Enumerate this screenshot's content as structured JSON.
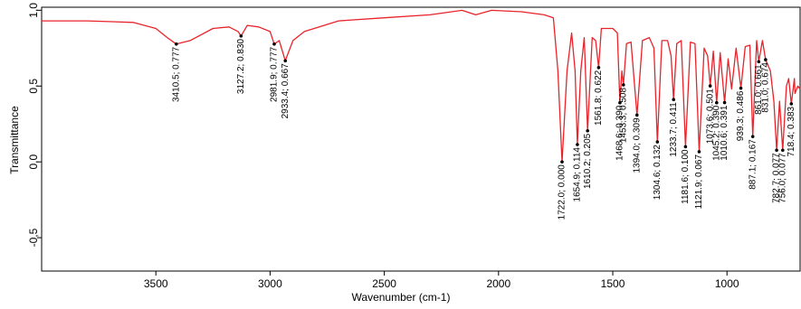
{
  "chart_data": {
    "type": "line",
    "xlabel": "Wavenumber (cm-1)",
    "ylabel": "Transmittance",
    "color": "#e8232a",
    "xlim": [
      4000,
      680
    ],
    "ylim": [
      -0.72,
      1.02
    ],
    "xticks": [
      3500,
      3000,
      2500,
      2000,
      1500,
      1000
    ],
    "yticks": [
      {
        "value": 1.0,
        "label": "1,0"
      },
      {
        "value": 0.5,
        "label": "0,5"
      },
      {
        "value": 0.0,
        "label": "0,0"
      },
      {
        "value": -0.5,
        "label": "-0,5"
      }
    ],
    "x": [
      4000,
      3800,
      3600,
      3500,
      3450,
      3410.5,
      3350,
      3250,
      3180,
      3140,
      3127.2,
      3100,
      3050,
      3000,
      2981.9,
      2960,
      2933.4,
      2900,
      2850,
      2700,
      2500,
      2300,
      2160,
      2100,
      2030,
      1900,
      1800,
      1760,
      1740,
      1722,
      1700,
      1680,
      1665,
      1654.9,
      1640,
      1625,
      1610.2,
      1590,
      1575,
      1561.8,
      1550,
      1500,
      1480,
      1468.6,
      1460,
      1453.3,
      1440,
      1420,
      1394,
      1370,
      1340,
      1320,
      1304.6,
      1285,
      1260,
      1245,
      1233.7,
      1220,
      1200,
      1181.6,
      1160,
      1140,
      1121.9,
      1100,
      1085,
      1073.6,
      1060,
      1045.2,
      1030,
      1010.6,
      995,
      980,
      960,
      939.3,
      920,
      900,
      887.1,
      870,
      861,
      845,
      831,
      810,
      795,
      782.7,
      770,
      756,
      740,
      730,
      718.4,
      705,
      702,
      690,
      680
    ],
    "values": [
      0.93,
      0.93,
      0.92,
      0.88,
      0.82,
      0.777,
      0.8,
      0.88,
      0.89,
      0.86,
      0.83,
      0.9,
      0.89,
      0.86,
      0.777,
      0.8,
      0.667,
      0.8,
      0.86,
      0.93,
      0.95,
      0.97,
      1.0,
      0.97,
      1.0,
      0.99,
      0.97,
      0.95,
      0.6,
      0.0,
      0.6,
      0.85,
      0.6,
      0.114,
      0.6,
      0.82,
      0.205,
      0.82,
      0.8,
      0.622,
      0.88,
      0.88,
      0.85,
      0.39,
      0.6,
      0.508,
      0.78,
      0.79,
      0.309,
      0.8,
      0.82,
      0.75,
      0.132,
      0.8,
      0.8,
      0.7,
      0.411,
      0.78,
      0.8,
      0.1,
      0.79,
      0.78,
      0.067,
      0.75,
      0.7,
      0.501,
      0.73,
      0.39,
      0.72,
      0.391,
      0.68,
      0.48,
      0.75,
      0.486,
      0.76,
      0.77,
      0.167,
      0.8,
      0.661,
      0.8,
      0.674,
      0.6,
      0.4,
      0.077,
      0.4,
      0.077,
      0.5,
      0.55,
      0.383,
      0.55,
      0.452,
      0.5,
      0.48
    ],
    "annotations": [
      {
        "x": 3410.5,
        "y": 0.777,
        "label": "3410.5; 0.777"
      },
      {
        "x": 3127.2,
        "y": 0.83,
        "label": "3127.2; 0.830"
      },
      {
        "x": 2981.9,
        "y": 0.777,
        "label": "2981.9; 0.777"
      },
      {
        "x": 2933.4,
        "y": 0.667,
        "label": "2933.4; 0.667"
      },
      {
        "x": 1722.0,
        "y": 0.0,
        "label": "1722.0; 0.000"
      },
      {
        "x": 1654.9,
        "y": 0.114,
        "label": "1654.9; 0.114"
      },
      {
        "x": 1610.2,
        "y": 0.205,
        "label": "1610.2; 0.205"
      },
      {
        "x": 1561.8,
        "y": 0.622,
        "label": "1561.8; 0.622"
      },
      {
        "x": 1468.6,
        "y": 0.39,
        "label": "1468.6; 0.390"
      },
      {
        "x": 1453.3,
        "y": 0.508,
        "label": "1453.3; 0.508"
      },
      {
        "x": 1394.0,
        "y": 0.309,
        "label": "1394.0; 0.309"
      },
      {
        "x": 1304.6,
        "y": 0.132,
        "label": "1304.6; 0.132"
      },
      {
        "x": 1233.7,
        "y": 0.411,
        "label": "1233.7; 0.411"
      },
      {
        "x": 1181.6,
        "y": 0.1,
        "label": "1181.6; 0.100"
      },
      {
        "x": 1121.9,
        "y": 0.067,
        "label": "1121.9; 0.067"
      },
      {
        "x": 1073.6,
        "y": 0.501,
        "label": "1073.6; 0.501"
      },
      {
        "x": 1045.2,
        "y": 0.39,
        "label": "1045.2; 0.390"
      },
      {
        "x": 1010.6,
        "y": 0.391,
        "label": "1010.6; 0.391"
      },
      {
        "x": 939.3,
        "y": 0.486,
        "label": "939.3; 0.486"
      },
      {
        "x": 887.1,
        "y": 0.167,
        "label": "887.1; 0.167"
      },
      {
        "x": 861.0,
        "y": 0.661,
        "label": "861.0; 0.661"
      },
      {
        "x": 831.0,
        "y": 0.674,
        "label": "831.0; 0.674"
      },
      {
        "x": 782.7,
        "y": 0.077,
        "label": "782.7; 0.077"
      },
      {
        "x": 756.0,
        "y": 0.077,
        "label": "756.0; 0.077"
      },
      {
        "x": 718.4,
        "y": 0.383,
        "label": "718.4; 0.383"
      }
    ]
  }
}
